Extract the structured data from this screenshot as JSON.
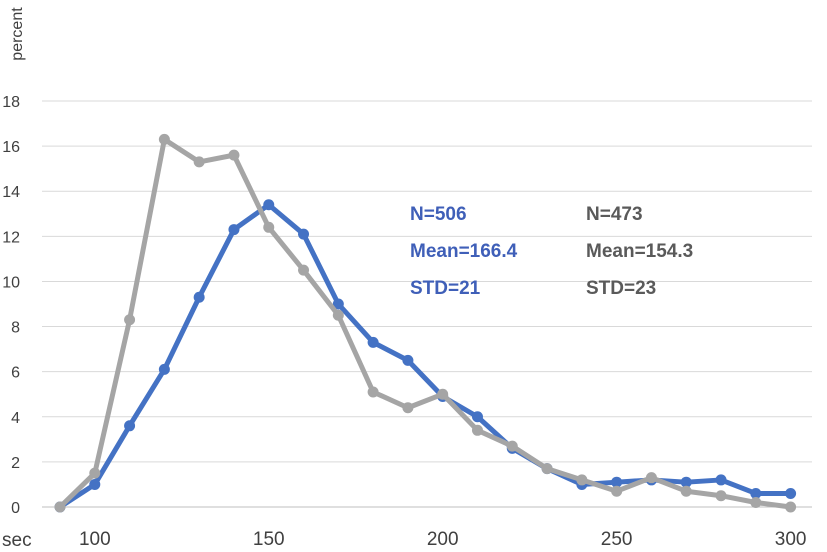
{
  "chart_data": {
    "type": "line",
    "title": "",
    "xlabel": "sec",
    "ylabel": "percent",
    "xlim": [
      90,
      305
    ],
    "ylim": [
      0,
      18
    ],
    "x_ticks": [
      100,
      150,
      200,
      250,
      300
    ],
    "y_ticks": [
      0,
      2,
      4,
      6,
      8,
      10,
      12,
      14,
      16,
      18
    ],
    "grid": "horizontal",
    "series": [
      {
        "color": "#4472c4",
        "x": [
          90,
          100,
          110,
          120,
          130,
          140,
          150,
          160,
          170,
          180,
          190,
          200,
          210,
          220,
          230,
          240,
          250,
          260,
          270,
          280,
          290,
          300
        ],
        "values": [
          0.0,
          1.0,
          3.6,
          6.1,
          9.3,
          12.3,
          13.4,
          12.1,
          9.0,
          7.3,
          6.5,
          4.9,
          4.0,
          2.6,
          1.7,
          1.0,
          1.1,
          1.2,
          1.1,
          1.2,
          0.6,
          0.6
        ]
      },
      {
        "color": "#a5a5a5",
        "x": [
          90,
          100,
          110,
          120,
          130,
          140,
          150,
          160,
          170,
          180,
          190,
          200,
          210,
          220,
          230,
          240,
          250,
          260,
          270,
          280,
          290,
          300
        ],
        "values": [
          0.0,
          1.5,
          8.3,
          16.3,
          15.3,
          15.6,
          12.4,
          10.5,
          8.5,
          5.1,
          4.4,
          5.0,
          3.4,
          2.7,
          1.7,
          1.2,
          0.7,
          1.3,
          0.7,
          0.5,
          0.2,
          0.0
        ]
      }
    ],
    "annotations": [
      {
        "series": 0,
        "lines": [
          "N=506",
          "Mean=166.4",
          "STD=21"
        ],
        "color": "#3f5fb8"
      },
      {
        "series": 1,
        "lines": [
          "N=473",
          "Mean=154.3",
          "STD=23"
        ],
        "color": "#5a5a5a"
      }
    ]
  }
}
